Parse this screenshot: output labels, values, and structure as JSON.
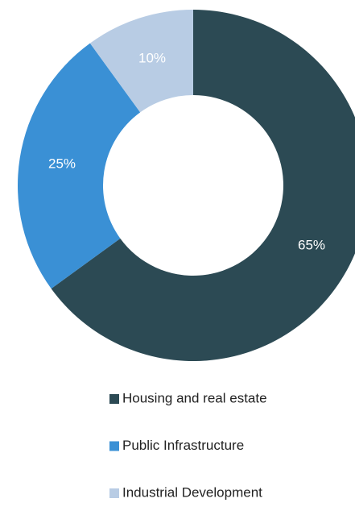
{
  "chart_data": {
    "type": "pie",
    "categories": [
      "Housing and real estate",
      "Public Infrastructure",
      "Industrial Development"
    ],
    "values": [
      65,
      25,
      10
    ],
    "value_labels": [
      "65%",
      "25%",
      "10%"
    ],
    "colors": [
      "#2c4a54",
      "#3a90d5",
      "#b8cce4"
    ]
  }
}
